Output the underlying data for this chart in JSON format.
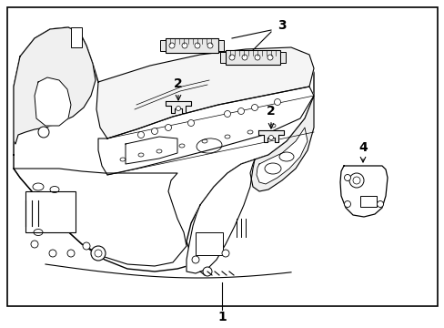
{
  "background_color": "#ffffff",
  "border_color": "#000000",
  "line_color": "#000000",
  "text_color": "#000000",
  "label_1": "1",
  "label_2": "2",
  "label_3": "3",
  "label_4": "4",
  "figsize": [
    4.89,
    3.6
  ],
  "dpi": 100
}
